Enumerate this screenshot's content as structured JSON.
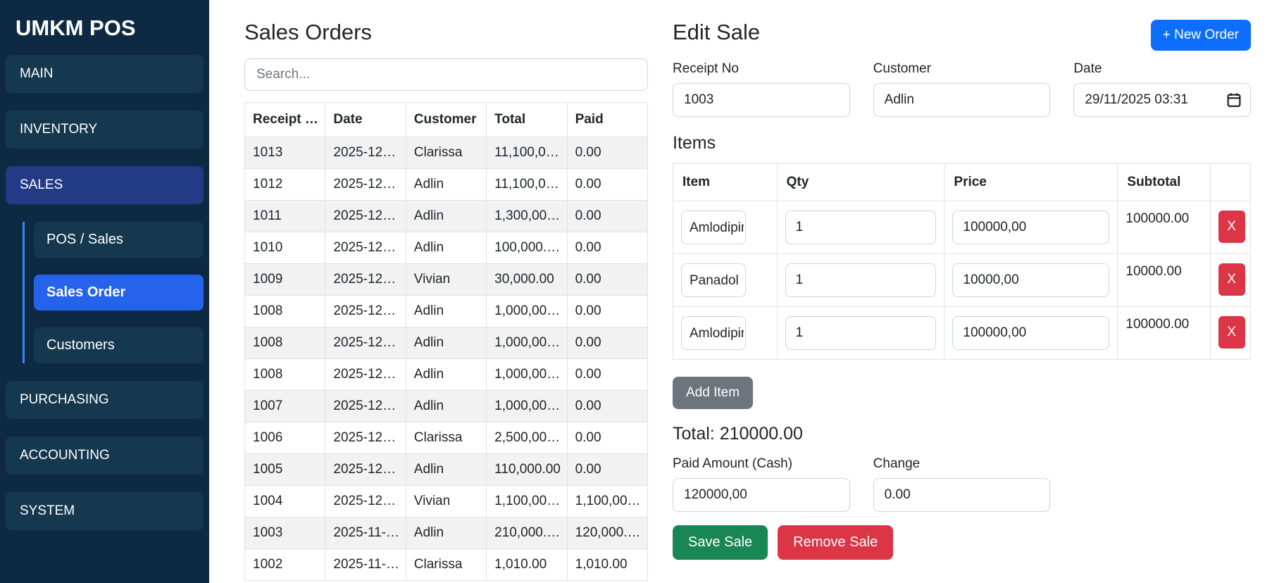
{
  "colors": {
    "sidebar_bg": "#0e2a42",
    "sidebar_item_bg": "#15384f",
    "sales_active_bg": "#233b87",
    "submenu_active_bg": "#2563eb",
    "submenu_line": "#3b82f6",
    "primary": "#0d6efd",
    "secondary": "#6c757d",
    "success": "#198754",
    "danger": "#dc3545",
    "table_border": "#dee2e6",
    "stripe": "#f2f2f2"
  },
  "sidebar": {
    "title": "UMKM POS",
    "items": [
      {
        "label": "MAIN",
        "active": false
      },
      {
        "label": "INVENTORY",
        "active": false
      },
      {
        "label": "SALES",
        "active": true
      },
      {
        "label": "PURCHASING",
        "active": false
      },
      {
        "label": "ACCOUNTING",
        "active": false
      },
      {
        "label": "SYSTEM",
        "active": false
      }
    ],
    "sales_submenu": [
      {
        "label": "POS / Sales",
        "active": false
      },
      {
        "label": "Sales Order",
        "active": true
      },
      {
        "label": "Customers",
        "active": false
      }
    ]
  },
  "sales_orders": {
    "title": "Sales Orders",
    "search_placeholder": "Search...",
    "columns": [
      "Receipt …",
      "Date",
      "Customer",
      "Total",
      "Paid"
    ],
    "rows": [
      [
        "1013",
        "2025-12…",
        "Clarissa",
        "11,100,0…",
        "0.00"
      ],
      [
        "1012",
        "2025-12…",
        "Adlin",
        "11,100,0…",
        "0.00"
      ],
      [
        "1011",
        "2025-12…",
        "Adlin",
        "1,300,00…",
        "0.00"
      ],
      [
        "1010",
        "2025-12…",
        "Adlin",
        "100,000.…",
        "0.00"
      ],
      [
        "1009",
        "2025-12…",
        "Vivian",
        "30,000.00",
        "0.00"
      ],
      [
        "1008",
        "2025-12…",
        "Adlin",
        "1,000,00…",
        "0.00"
      ],
      [
        "1008",
        "2025-12…",
        "Adlin",
        "1,000,00…",
        "0.00"
      ],
      [
        "1008",
        "2025-12…",
        "Adlin",
        "1,000,00…",
        "0.00"
      ],
      [
        "1007",
        "2025-12…",
        "Adlin",
        "1,000,00…",
        "0.00"
      ],
      [
        "1006",
        "2025-12…",
        "Clarissa",
        "2,500,00…",
        "0.00"
      ],
      [
        "1005",
        "2025-12…",
        "Adlin",
        "110,000.00",
        "0.00"
      ],
      [
        "1004",
        "2025-12…",
        "Vivian",
        "1,100,00…",
        "1,100,00…"
      ],
      [
        "1003",
        "2025-11-…",
        "Adlin",
        "210,000.…",
        "120,000.…"
      ],
      [
        "1002",
        "2025-11-…",
        "Clarissa",
        "1,010.00",
        "1,010.00"
      ]
    ]
  },
  "edit_sale": {
    "title": "Edit Sale",
    "new_order_label": "+ New Order",
    "receipt_label": "Receipt No",
    "receipt_value": "1003",
    "customer_label": "Customer",
    "customer_value": "Adlin",
    "date_label": "Date",
    "date_value": "29/11/2025 03:31",
    "calendar_icon": "calendar-icon",
    "items_heading": "Items",
    "items_columns": [
      "Item",
      "Qty",
      "Price",
      "Subtotal",
      ""
    ],
    "items": [
      {
        "name": "Amlodipine",
        "qty": "1",
        "price": "100000,00",
        "subtotal": "100000.00",
        "remove_label": "X"
      },
      {
        "name": "Panadol",
        "qty": "1",
        "price": "10000,00",
        "subtotal": "10000.00",
        "remove_label": "X"
      },
      {
        "name": "Amlodipine",
        "qty": "1",
        "price": "100000,00",
        "subtotal": "100000.00",
        "remove_label": "X"
      }
    ],
    "add_item_label": "Add Item",
    "total_text": "Total: 210000.00",
    "paid_label": "Paid Amount (Cash)",
    "paid_value": "120000,00",
    "change_label": "Change",
    "change_value": "0.00",
    "save_label": "Save Sale",
    "remove_sale_label": "Remove Sale"
  }
}
